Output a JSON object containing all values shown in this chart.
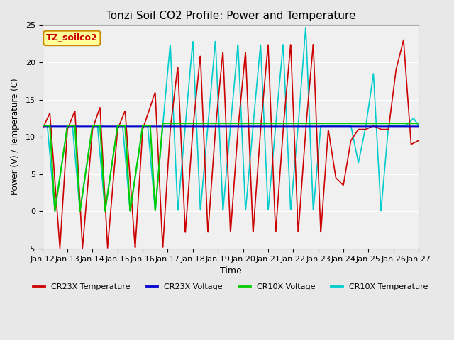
{
  "title": "Tonzi Soil CO2 Profile: Power and Temperature",
  "xlabel": "Time",
  "ylabel": "Power (V) / Temperature (C)",
  "ylim": [
    -5,
    25
  ],
  "xlim": [
    0,
    15
  ],
  "x_tick_labels": [
    "Jan 12",
    "Jan 13",
    "Jan 14",
    "Jan 15",
    "Jan 16",
    "Jan 17",
    "Jan 18",
    "Jan 19",
    "Jan 20",
    "Jan 21",
    "Jan 22",
    "Jan 23",
    "Jan 24",
    "Jan 25",
    "Jan 26",
    "Jan 27"
  ],
  "annotation_text": "TZ_soilco2",
  "annotation_color": "#cc0000",
  "annotation_bg": "#ffff99",
  "annotation_border": "#cc8800",
  "cr23x_voltage_value": 11.4,
  "cr10x_voltage_value": 11.8,
  "legend_labels": [
    "CR23X Temperature",
    "CR23X Voltage",
    "CR10X Voltage",
    "CR10X Temperature"
  ],
  "legend_colors": [
    "#cc0000",
    "#0000cc",
    "#00cc00",
    "#00cccc"
  ],
  "bg_color": "#e8e8e8",
  "plot_bg": "#f0f0f0",
  "grid_color": "#ffffff"
}
